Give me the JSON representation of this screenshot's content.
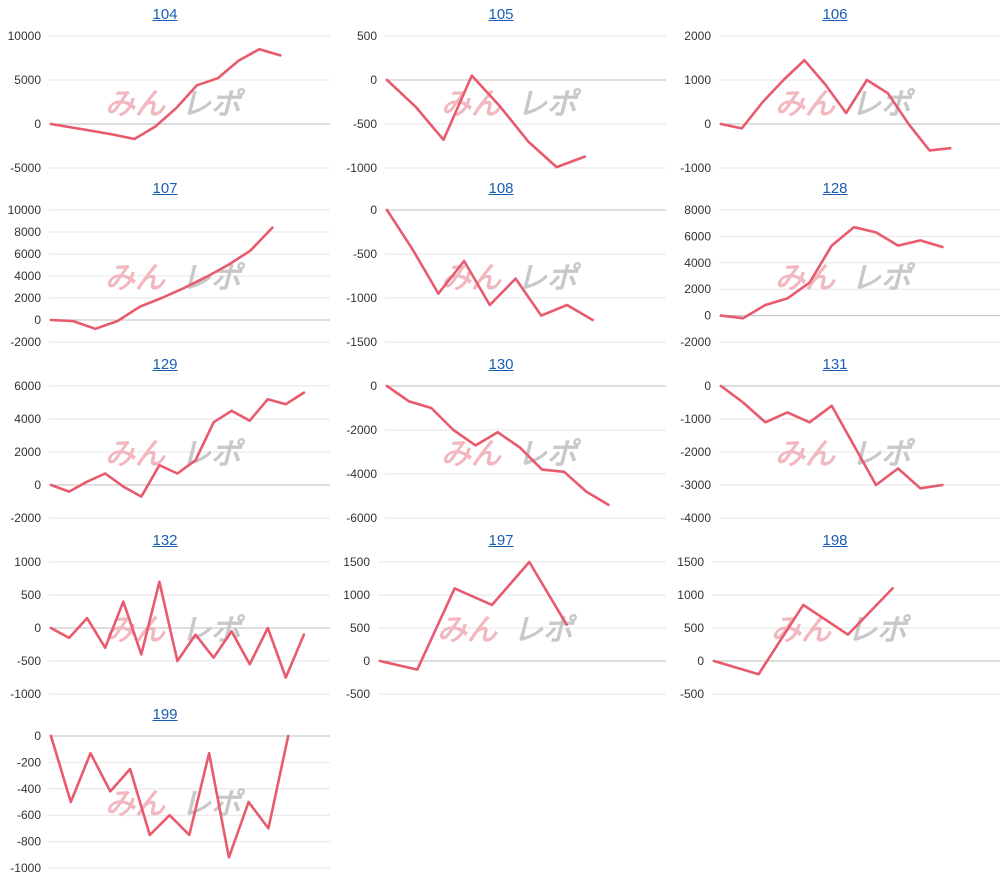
{
  "page": {
    "accent_line": "#e85a6e",
    "grid": "#e6e6e6",
    "zero_line": "#bdbdbd",
    "link_color": "#1a5fb4"
  },
  "watermark": {
    "text": "みんレポ",
    "color_left": "#f2b8bf",
    "color_right": "#c8c8c8"
  },
  "chart_data": [
    {
      "type": "line",
      "title": "104",
      "yticks": [
        10000,
        5000,
        0,
        -5000
      ],
      "ylim": [
        -5000,
        10000
      ],
      "values": [
        0,
        -400,
        -800,
        -1200,
        -1700,
        -300,
        1800,
        4400,
        5200,
        7200,
        8500,
        7800
      ]
    },
    {
      "type": "line",
      "title": "105",
      "yticks": [
        500,
        0,
        -500,
        -1000
      ],
      "ylim": [
        -1000,
        500
      ],
      "values": [
        0,
        -300,
        -680,
        50,
        -300,
        -700,
        -990,
        -870
      ]
    },
    {
      "type": "line",
      "title": "106",
      "yticks": [
        2000,
        1000,
        0,
        -1000
      ],
      "ylim": [
        -1000,
        2000
      ],
      "values": [
        0,
        -100,
        500,
        1000,
        1450,
        900,
        250,
        1000,
        700,
        0,
        -600,
        -550
      ]
    },
    {
      "type": "line",
      "title": "107",
      "yticks": [
        10000,
        8000,
        6000,
        4000,
        2000,
        0,
        -2000
      ],
      "ylim": [
        -2000,
        10000
      ],
      "values": [
        0,
        -100,
        -800,
        -100,
        1200,
        2000,
        2900,
        3900,
        5000,
        6300,
        8400
      ]
    },
    {
      "type": "line",
      "title": "108",
      "yticks": [
        0,
        -500,
        -1000,
        -1500
      ],
      "ylim": [
        -1500,
        0
      ],
      "values": [
        0,
        -450,
        -950,
        -580,
        -1080,
        -780,
        -1200,
        -1080,
        -1250
      ]
    },
    {
      "type": "line",
      "title": "128",
      "yticks": [
        8000,
        6000,
        4000,
        2000,
        0,
        -2000
      ],
      "ylim": [
        -2000,
        8000
      ],
      "values": [
        0,
        -200,
        800,
        1300,
        2500,
        5300,
        6700,
        6300,
        5300,
        5700,
        5200
      ]
    },
    {
      "type": "line",
      "title": "129",
      "yticks": [
        6000,
        4000,
        2000,
        0,
        -2000
      ],
      "ylim": [
        -2000,
        6000
      ],
      "values": [
        0,
        -400,
        200,
        700,
        -100,
        -700,
        1200,
        700,
        1500,
        3800,
        4500,
        3900,
        5200,
        4900,
        5600
      ]
    },
    {
      "type": "line",
      "title": "130",
      "yticks": [
        0,
        -2000,
        -4000,
        -6000
      ],
      "ylim": [
        -6000,
        0
      ],
      "values": [
        0,
        -700,
        -1000,
        -2000,
        -2700,
        -2100,
        -2800,
        -3800,
        -3900,
        -4800,
        -5400
      ]
    },
    {
      "type": "line",
      "title": "131",
      "yticks": [
        0,
        -1000,
        -2000,
        -3000,
        -4000
      ],
      "ylim": [
        -4000,
        0
      ],
      "values": [
        0,
        -500,
        -1100,
        -800,
        -1100,
        -600,
        -1800,
        -3000,
        -2500,
        -3100,
        -3000
      ]
    },
    {
      "type": "line",
      "title": "132",
      "yticks": [
        1000,
        500,
        0,
        -500,
        -1000
      ],
      "ylim": [
        -1000,
        1000
      ],
      "values": [
        0,
        -150,
        150,
        -300,
        400,
        -400,
        700,
        -500,
        -100,
        -450,
        -50,
        -550,
        0,
        -750,
        -100
      ]
    },
    {
      "type": "line",
      "title": "197",
      "yticks": [
        1500,
        1000,
        500,
        0,
        -500
      ],
      "ylim": [
        -500,
        1500
      ],
      "values": [
        0,
        -130,
        1100,
        850,
        1500,
        550
      ]
    },
    {
      "type": "line",
      "title": "198",
      "yticks": [
        1500,
        1000,
        500,
        0,
        -500
      ],
      "ylim": [
        -500,
        1500
      ],
      "values": [
        0,
        -200,
        850,
        400,
        1100
      ]
    },
    {
      "type": "line",
      "title": "199",
      "yticks": [
        0,
        -200,
        -400,
        -600,
        -800,
        -1000
      ],
      "ylim": [
        -1000,
        0
      ],
      "values": [
        0,
        -500,
        -130,
        -420,
        -250,
        -750,
        -600,
        -750,
        -130,
        -920,
        -500,
        -700,
        0
      ]
    }
  ]
}
